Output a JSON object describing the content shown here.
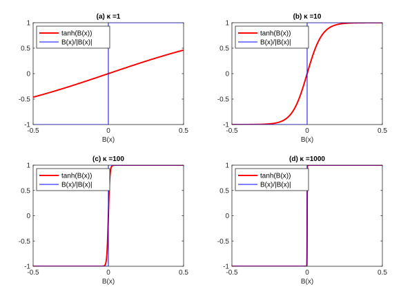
{
  "colors": {
    "tanh": "#ff0000",
    "sign": "#0000ff",
    "axis": "#262626",
    "background": "#ffffff"
  },
  "chart_data": [
    {
      "type": "line",
      "title": "(a) κ =1",
      "kappa": 1,
      "xlabel": "B(x)",
      "xlim": [
        -0.5,
        0.5
      ],
      "ylim": [
        -1,
        1
      ],
      "xticks": [
        "-0.5",
        "0",
        "0.5"
      ],
      "yticks": [
        "-1",
        "-0.5",
        "0",
        "0.5",
        "1"
      ],
      "legend_position": "top-left",
      "series": [
        {
          "name": "tanh(B(x))",
          "x": [
            -0.5,
            -0.25,
            0,
            0.25,
            0.5
          ],
          "y": [
            -0.462,
            -0.245,
            0,
            0.245,
            0.462
          ]
        },
        {
          "name": "B(x)/|B(x)|",
          "x": [
            -0.5,
            0,
            0,
            0.5
          ],
          "y": [
            -1,
            -1,
            1,
            1
          ]
        }
      ]
    },
    {
      "type": "line",
      "title": "(b) κ =10",
      "kappa": 10,
      "xlabel": "B(x)",
      "xlim": [
        -0.5,
        0.5
      ],
      "ylim": [
        -1,
        1
      ],
      "xticks": [
        "-0.5",
        "0",
        "0.5"
      ],
      "yticks": [
        "-1",
        "-0.5",
        "0",
        "0.5",
        "1"
      ],
      "legend_position": "top-left",
      "series": [
        {
          "name": "tanh(B(x))",
          "x": [
            -0.5,
            -0.3,
            -0.2,
            -0.1,
            -0.05,
            0,
            0.05,
            0.1,
            0.2,
            0.3,
            0.5
          ],
          "y": [
            -1,
            -0.995,
            -0.964,
            -0.762,
            -0.462,
            0,
            0.462,
            0.762,
            0.964,
            0.995,
            1
          ]
        },
        {
          "name": "B(x)/|B(x)|",
          "x": [
            -0.5,
            0,
            0,
            0.5
          ],
          "y": [
            -1,
            -1,
            1,
            1
          ]
        }
      ]
    },
    {
      "type": "line",
      "title": "(c) κ =100",
      "kappa": 100,
      "xlabel": "B(x)",
      "xlim": [
        -0.5,
        0.5
      ],
      "ylim": [
        -1,
        1
      ],
      "xticks": [
        "-0.5",
        "0",
        "0.5"
      ],
      "yticks": [
        "-1",
        "-0.5",
        "0",
        "0.5",
        "1"
      ],
      "legend_position": "top-left",
      "series": [
        {
          "name": "tanh(B(x))",
          "x": [
            -0.5,
            -0.03,
            -0.02,
            -0.01,
            0,
            0.01,
            0.02,
            0.03,
            0.5
          ],
          "y": [
            -1,
            -0.995,
            -0.964,
            -0.762,
            0,
            0.762,
            0.964,
            0.995,
            1
          ]
        },
        {
          "name": "B(x)/|B(x)|",
          "x": [
            -0.5,
            0,
            0,
            0.5
          ],
          "y": [
            -1,
            -1,
            1,
            1
          ]
        }
      ]
    },
    {
      "type": "line",
      "title": "(d) κ =1000",
      "kappa": 1000,
      "xlabel": "B(x)",
      "xlim": [
        -0.5,
        0.5
      ],
      "ylim": [
        -1,
        1
      ],
      "xticks": [
        "-0.5",
        "0",
        "0.5"
      ],
      "yticks": [
        "-1",
        "-0.5",
        "0",
        "0.5",
        "1"
      ],
      "legend_position": "top-left",
      "series": [
        {
          "name": "tanh(B(x))",
          "x": [
            -0.5,
            -0.003,
            -0.002,
            -0.001,
            0,
            0.001,
            0.002,
            0.003,
            0.5
          ],
          "y": [
            -1,
            -0.995,
            -0.964,
            -0.762,
            0,
            0.762,
            0.964,
            0.995,
            1
          ]
        },
        {
          "name": "B(x)/|B(x)|",
          "x": [
            -0.5,
            0,
            0,
            0.5
          ],
          "y": [
            -1,
            -1,
            1,
            1
          ]
        }
      ]
    }
  ]
}
